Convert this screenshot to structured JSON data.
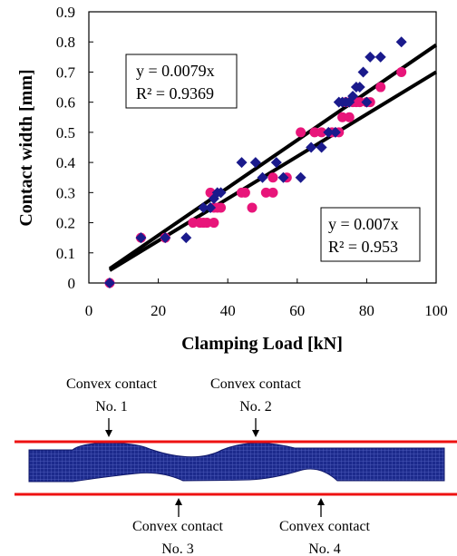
{
  "chart_data": {
    "type": "scatter",
    "xlabel": "Clamping Load [kN]",
    "ylabel": "Contact width [mm]",
    "xlim": [
      0,
      100
    ],
    "ylim": [
      0,
      0.9
    ],
    "x_ticks": [
      "0",
      "20",
      "40",
      "60",
      "80",
      "100"
    ],
    "y_ticks": [
      "0",
      "0.1",
      "0.2",
      "0.3",
      "0.4",
      "0.5",
      "0.6",
      "0.7",
      "0.8",
      "0.9"
    ],
    "grid": false,
    "series": [
      {
        "marker": "diamond",
        "color": "#1a1a8c",
        "points": [
          [
            6,
            0
          ],
          [
            15,
            0.15
          ],
          [
            22,
            0.15
          ],
          [
            28,
            0.15
          ],
          [
            33,
            0.25
          ],
          [
            35,
            0.25
          ],
          [
            36,
            0.28
          ],
          [
            37,
            0.3
          ],
          [
            38,
            0.3
          ],
          [
            44,
            0.4
          ],
          [
            48,
            0.4
          ],
          [
            50,
            0.35
          ],
          [
            54,
            0.4
          ],
          [
            56,
            0.35
          ],
          [
            61,
            0.35
          ],
          [
            64,
            0.45
          ],
          [
            67,
            0.45
          ],
          [
            69,
            0.5
          ],
          [
            71,
            0.5
          ],
          [
            72,
            0.6
          ],
          [
            73,
            0.6
          ],
          [
            74,
            0.6
          ],
          [
            75,
            0.6
          ],
          [
            76,
            0.62
          ],
          [
            77,
            0.65
          ],
          [
            78,
            0.65
          ],
          [
            79,
            0.7
          ],
          [
            80,
            0.6
          ],
          [
            81,
            0.75
          ],
          [
            84,
            0.75
          ],
          [
            90,
            0.8
          ]
        ]
      },
      {
        "marker": "circle",
        "color": "#e8157a",
        "points": [
          [
            6,
            0
          ],
          [
            15,
            0.15
          ],
          [
            22,
            0.15
          ],
          [
            30,
            0.2
          ],
          [
            32,
            0.2
          ],
          [
            33,
            0.2
          ],
          [
            34,
            0.2
          ],
          [
            35,
            0.3
          ],
          [
            36,
            0.25
          ],
          [
            36,
            0.2
          ],
          [
            37,
            0.25
          ],
          [
            38,
            0.25
          ],
          [
            44,
            0.3
          ],
          [
            45,
            0.3
          ],
          [
            47,
            0.25
          ],
          [
            51,
            0.3
          ],
          [
            53,
            0.3
          ],
          [
            53,
            0.35
          ],
          [
            57,
            0.35
          ],
          [
            61,
            0.5
          ],
          [
            65,
            0.5
          ],
          [
            67,
            0.5
          ],
          [
            70,
            0.5
          ],
          [
            72,
            0.5
          ],
          [
            73,
            0.55
          ],
          [
            74,
            0.6
          ],
          [
            75,
            0.55
          ],
          [
            76,
            0.6
          ],
          [
            77,
            0.6
          ],
          [
            78,
            0.6
          ],
          [
            80,
            0.6
          ],
          [
            81,
            0.6
          ],
          [
            84,
            0.65
          ],
          [
            90,
            0.7
          ]
        ]
      }
    ],
    "trendlines": [
      {
        "slope": 0.0079,
        "x_range": [
          6,
          100
        ],
        "equation": "y = 0.0079x",
        "r2": "R² = 0.9369"
      },
      {
        "slope": 0.007,
        "x_range": [
          6,
          100
        ],
        "equation": "y = 0.007x",
        "r2": "R² = 0.953"
      }
    ]
  },
  "contact_figure": {
    "labels": [
      {
        "line1": "Convex contact",
        "line2": "No. 1"
      },
      {
        "line1": "Convex contact",
        "line2": "No. 2"
      },
      {
        "line1": "Convex contact",
        "line2": "No. 3"
      },
      {
        "line1": "Convex contact",
        "line2": "No. 4"
      }
    ],
    "plate_line_color": "#ee1111",
    "mesh_color": "#1c2a8c"
  }
}
